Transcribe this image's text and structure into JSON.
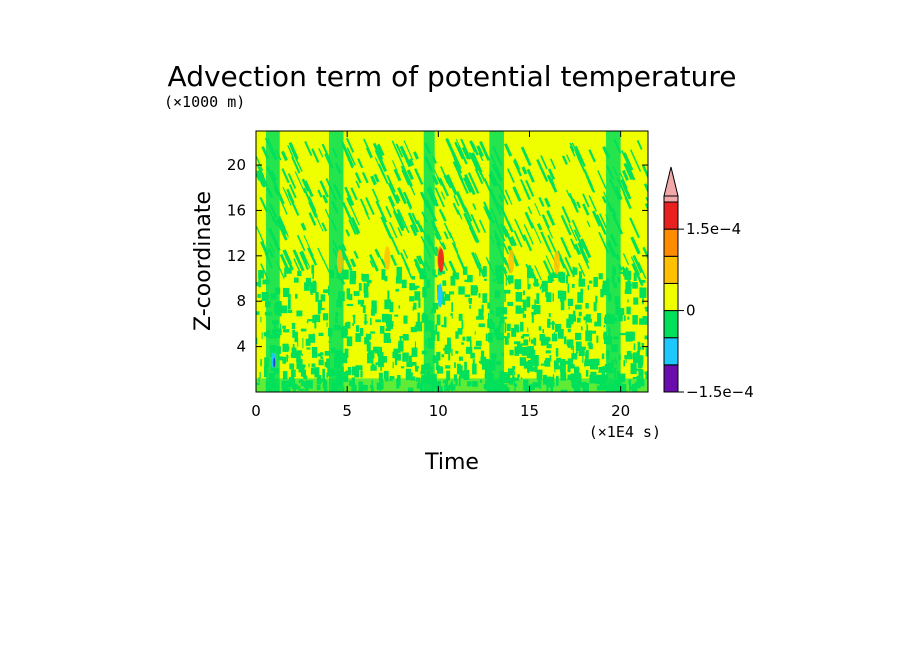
{
  "chart_data": {
    "type": "heatmap",
    "title": "Advection term of potential temperature",
    "xlabel": "Time",
    "ylabel": "Z-coordinate",
    "x_unit": "(×1E4 s)",
    "y_unit": "(×1000 m)",
    "xlim": [
      0,
      21.5
    ],
    "ylim": [
      0,
      23
    ],
    "x_ticks": [
      0,
      5,
      10,
      15,
      20
    ],
    "y_ticks": [
      4,
      8,
      12,
      16,
      20
    ],
    "colorbar": {
      "levels": [
        -0.00015,
        -0.0001,
        -5e-05,
        0,
        5e-05,
        0.0001,
        0.00015,
        0.0002
      ],
      "colors": [
        "#6a0dad",
        "#1ec8ff",
        "#00e05a",
        "#f0ff00",
        "#ffc000",
        "#ff8c00",
        "#e82020"
      ],
      "extend_color": "#f0a8a8",
      "tick_values": [
        -0.00015,
        0,
        0.00015
      ],
      "tick_labels": [
        "−1.5e−4",
        "0",
        "1.5e−4"
      ]
    }
  }
}
